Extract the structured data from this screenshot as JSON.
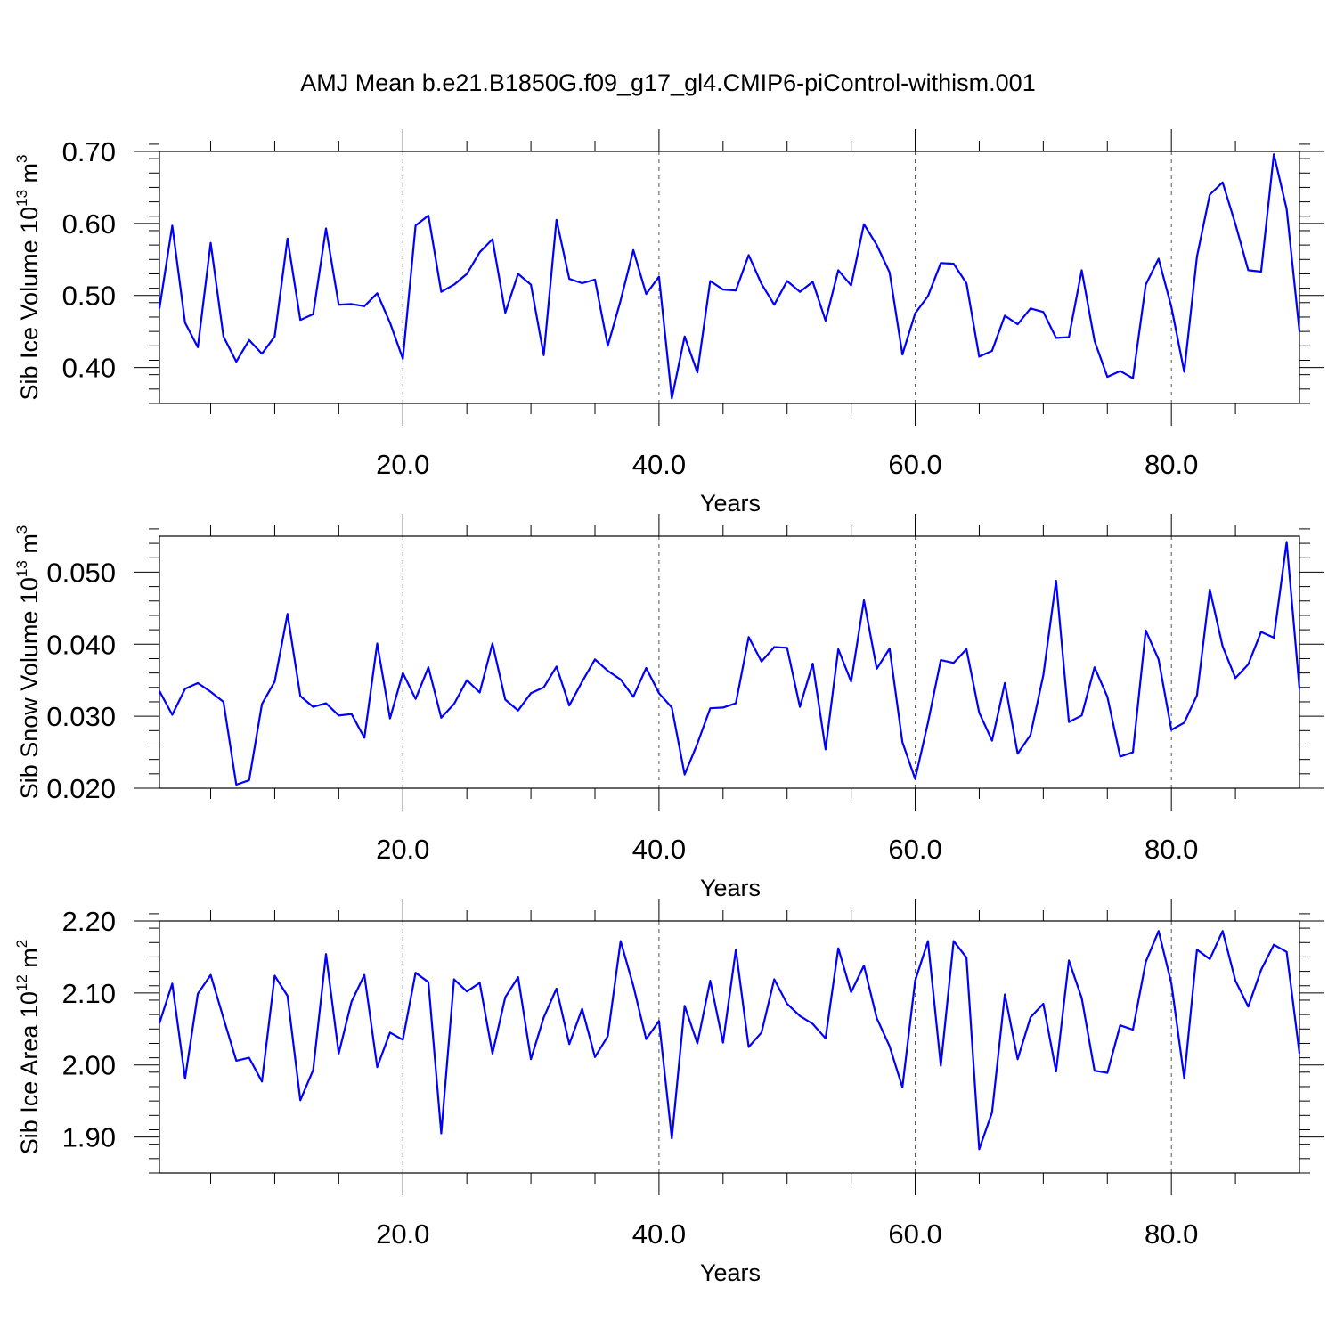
{
  "title": "AMJ Mean b.e21.B1850G.f09_g17_gl4.CMIP6-piControl-withism.001",
  "colors": {
    "line": "#0000ff",
    "axis": "#000000",
    "grid": "#555555"
  },
  "chart_data": [
    {
      "type": "line",
      "xlabel": "Years",
      "ylabel": {
        "text": "Sib Ice Volume 10",
        "exp": "13",
        "unit": " m",
        "unit_exp": "3"
      },
      "xlim": [
        1,
        90
      ],
      "ylim": [
        0.35,
        0.7
      ],
      "xticks": [
        20,
        40,
        60,
        80
      ],
      "xtick_labels": [
        "20.0",
        "40.0",
        "60.0",
        "80.0"
      ],
      "yticks": [
        0.4,
        0.5,
        0.6,
        0.7
      ],
      "ytick_labels": [
        "0.40",
        "0.50",
        "0.60",
        "0.70"
      ],
      "y_minor_step": 0.02,
      "grid": "vertical dashed at x ticks",
      "x_start": 1,
      "values": [
        0.482,
        0.597,
        0.462,
        0.428,
        0.573,
        0.443,
        0.408,
        0.438,
        0.419,
        0.443,
        0.579,
        0.466,
        0.474,
        0.593,
        0.487,
        0.488,
        0.485,
        0.503,
        0.462,
        0.412,
        0.597,
        0.611,
        0.505,
        0.515,
        0.53,
        0.56,
        0.578,
        0.476,
        0.53,
        0.515,
        0.417,
        0.605,
        0.523,
        0.517,
        0.522,
        0.43,
        0.493,
        0.563,
        0.502,
        0.526,
        0.357,
        0.443,
        0.393,
        0.52,
        0.508,
        0.507,
        0.556,
        0.516,
        0.487,
        0.52,
        0.505,
        0.519,
        0.465,
        0.535,
        0.514,
        0.599,
        0.57,
        0.532,
        0.418,
        0.475,
        0.499,
        0.545,
        0.544,
        0.517,
        0.415,
        0.423,
        0.472,
        0.46,
        0.482,
        0.477,
        0.441,
        0.442,
        0.535,
        0.437,
        0.387,
        0.395,
        0.385,
        0.515,
        0.551,
        0.484,
        0.394,
        0.554,
        0.64,
        0.657,
        0.599,
        0.535,
        0.533,
        0.696,
        0.62,
        0.45
      ]
    },
    {
      "type": "line",
      "xlabel": "Years",
      "ylabel": {
        "text": "Sib Snow Volume 10",
        "exp": "13",
        "unit": " m",
        "unit_exp": "3"
      },
      "xlim": [
        1,
        90
      ],
      "ylim": [
        0.02,
        0.055
      ],
      "xticks": [
        20,
        40,
        60,
        80
      ],
      "xtick_labels": [
        "20.0",
        "40.0",
        "60.0",
        "80.0"
      ],
      "yticks": [
        0.02,
        0.03,
        0.04,
        0.05
      ],
      "ytick_labels": [
        "0.020",
        "0.030",
        "0.040",
        "0.050"
      ],
      "y_minor_step": 0.002,
      "grid": "vertical dashed at x ticks",
      "x_start": 1,
      "values": [
        0.0335,
        0.0302,
        0.0338,
        0.0346,
        0.0334,
        0.032,
        0.0205,
        0.0211,
        0.0317,
        0.0348,
        0.0442,
        0.0328,
        0.0313,
        0.0318,
        0.0301,
        0.0303,
        0.027,
        0.0401,
        0.0297,
        0.036,
        0.0324,
        0.0368,
        0.0298,
        0.0317,
        0.035,
        0.0333,
        0.0401,
        0.0323,
        0.0308,
        0.0332,
        0.034,
        0.0369,
        0.0315,
        0.0348,
        0.0379,
        0.0363,
        0.0351,
        0.0327,
        0.0367,
        0.0332,
        0.0312,
        0.0219,
        0.0262,
        0.0311,
        0.0312,
        0.0318,
        0.041,
        0.0376,
        0.0396,
        0.0395,
        0.0313,
        0.0373,
        0.0254,
        0.0393,
        0.0348,
        0.0461,
        0.0366,
        0.0394,
        0.0264,
        0.0213,
        0.0291,
        0.0378,
        0.0374,
        0.0393,
        0.0305,
        0.0266,
        0.0346,
        0.0248,
        0.0274,
        0.0357,
        0.0488,
        0.0292,
        0.0301,
        0.0368,
        0.0327,
        0.0244,
        0.025,
        0.0419,
        0.0379,
        0.0281,
        0.0291,
        0.0329,
        0.0476,
        0.0397,
        0.0353,
        0.0372,
        0.0417,
        0.0409,
        0.0542,
        0.0338
      ]
    },
    {
      "type": "line",
      "xlabel": "Years",
      "ylabel": {
        "text": "Sib Ice Area 10",
        "exp": "12",
        "unit": " m",
        "unit_exp": "2"
      },
      "xlim": [
        1,
        90
      ],
      "ylim": [
        1.85,
        2.2
      ],
      "xticks": [
        20,
        40,
        60,
        80
      ],
      "xtick_labels": [
        "20.0",
        "40.0",
        "60.0",
        "80.0"
      ],
      "yticks": [
        1.9,
        2.0,
        2.1,
        2.2
      ],
      "ytick_labels": [
        "1.90",
        "2.00",
        "2.10",
        "2.20"
      ],
      "y_minor_step": 0.02,
      "grid": "vertical dashed at x ticks",
      "x_start": 1,
      "values": [
        2.058,
        2.113,
        1.981,
        2.099,
        2.125,
        2.065,
        2.006,
        2.01,
        1.977,
        2.124,
        2.096,
        1.951,
        1.993,
        2.154,
        2.016,
        2.088,
        2.125,
        1.997,
        2.045,
        2.035,
        2.128,
        2.115,
        1.905,
        2.119,
        2.102,
        2.114,
        2.016,
        2.094,
        2.122,
        2.008,
        2.066,
        2.106,
        2.029,
        2.078,
        2.011,
        2.04,
        2.172,
        2.11,
        2.036,
        2.061,
        1.898,
        2.082,
        2.03,
        2.117,
        2.031,
        2.16,
        2.025,
        2.045,
        2.119,
        2.085,
        2.068,
        2.057,
        2.037,
        2.162,
        2.101,
        2.138,
        2.065,
        2.026,
        1.969,
        2.117,
        2.172,
        1.999,
        2.172,
        2.149,
        1.883,
        1.934,
        2.098,
        2.008,
        2.066,
        2.085,
        1.991,
        2.145,
        2.093,
        1.992,
        1.989,
        2.055,
        2.049,
        2.143,
        2.186,
        2.113,
        1.982,
        2.16,
        2.147,
        2.186,
        2.117,
        2.081,
        2.132,
        2.167,
        2.157,
        2.016
      ]
    }
  ]
}
